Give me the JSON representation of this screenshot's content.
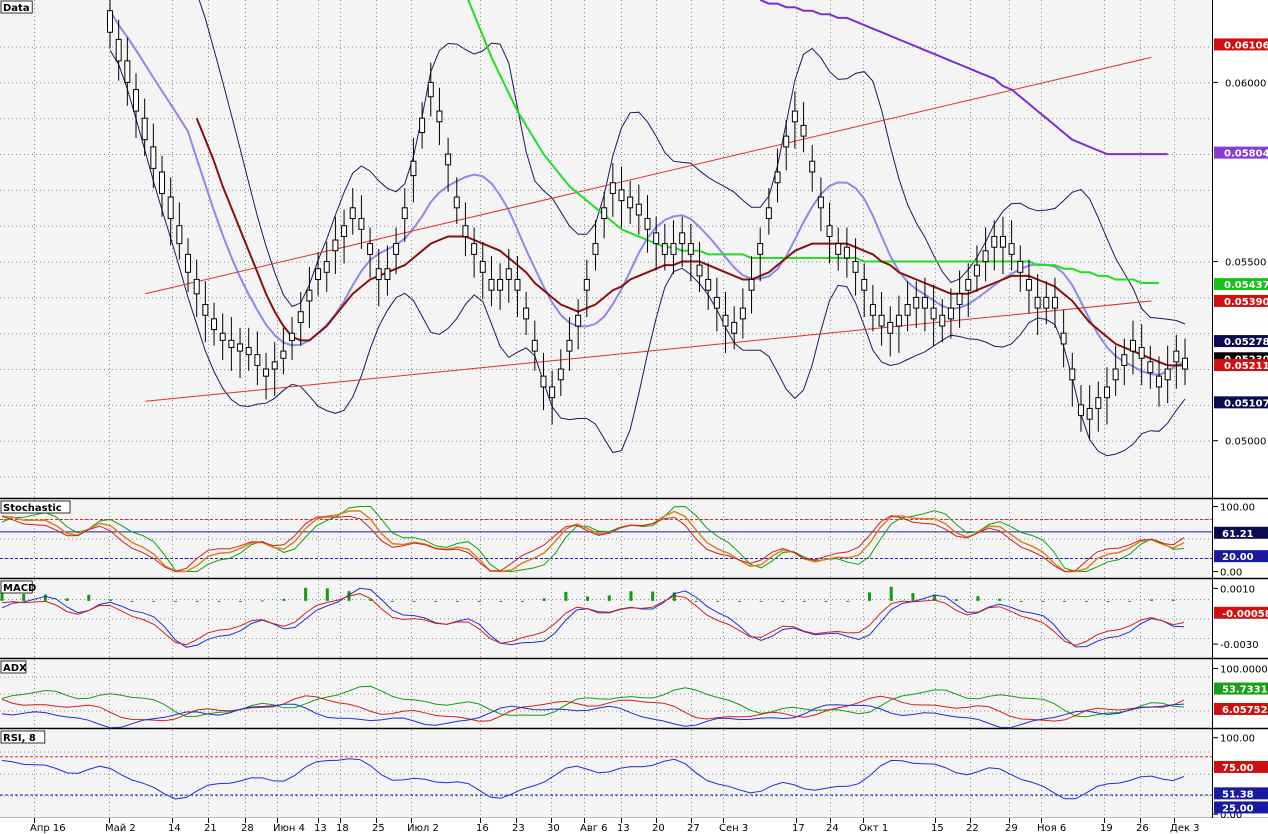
{
  "chart_data": {
    "type": "candlestick",
    "x_ticks": [
      "Апр 16",
      "Май 2",
      "14",
      "21",
      "28",
      "Июн 4",
      "13",
      "18",
      "25",
      "Июл 2",
      "16",
      "23",
      "30",
      "Авг 6",
      "13",
      "20",
      "27",
      "Сен 3",
      "17",
      "24",
      "Окт 1",
      "15",
      "22",
      "29",
      "Ноя 6",
      "19",
      "26",
      "Дек 3"
    ],
    "main": {
      "label": "Data",
      "yticks": [
        "0.06000",
        "0.05500",
        "0.05000"
      ],
      "price_labels": [
        {
          "text": "0.06106",
          "value": 0.06106,
          "color": "#d01010"
        },
        {
          "text": "0.05804",
          "value": 0.05804,
          "color": "#8a3bd6"
        },
        {
          "text": "0.05437",
          "value": 0.05437,
          "color": "#18c018"
        },
        {
          "text": "0.05390",
          "value": 0.0539,
          "color": "#d01010"
        },
        {
          "text": "0.05278",
          "value": 0.05278,
          "color": "#0a0a50"
        },
        {
          "text": "0.05230",
          "value": 0.0523,
          "color": "#000000"
        },
        {
          "text": "0.05211",
          "value": 0.05211,
          "color": "#d01010"
        },
        {
          "text": "0.05107",
          "value": 0.05107,
          "color": "#0a0a50"
        }
      ],
      "ylim": [
        0.0484,
        0.0623
      ],
      "close": [
        0.062,
        0.0612,
        0.0606,
        0.0598,
        0.059,
        0.0582,
        0.0575,
        0.0568,
        0.056,
        0.0552,
        0.0545,
        0.0538,
        0.0534,
        0.053,
        0.0528,
        0.0527,
        0.0526,
        0.0524,
        0.052,
        0.0522,
        0.0525,
        0.053,
        0.0536,
        0.0542,
        0.0548,
        0.055,
        0.0556,
        0.056,
        0.0565,
        0.0562,
        0.0555,
        0.0548,
        0.0548,
        0.0555,
        0.0565,
        0.0578,
        0.059,
        0.06,
        0.0592,
        0.058,
        0.0568,
        0.056,
        0.0555,
        0.055,
        0.0545,
        0.0545,
        0.0548,
        0.0545,
        0.0537,
        0.0528,
        0.0518,
        0.0515,
        0.052,
        0.0528,
        0.0535,
        0.0545,
        0.0555,
        0.0565,
        0.0572,
        0.057,
        0.0568,
        0.0566,
        0.0562,
        0.0558,
        0.0555,
        0.0555,
        0.0558,
        0.0555,
        0.0549,
        0.0545,
        0.054,
        0.0535,
        0.0533,
        0.0537,
        0.0545,
        0.0555,
        0.0565,
        0.0575,
        0.0585,
        0.0592,
        0.0588,
        0.0578,
        0.0568,
        0.056,
        0.0555,
        0.0554,
        0.055,
        0.0545,
        0.0538,
        0.0535,
        0.0533,
        0.0535,
        0.0538,
        0.054,
        0.054,
        0.0537,
        0.0535,
        0.0537,
        0.0541,
        0.0545,
        0.0549,
        0.0553,
        0.0557,
        0.0557,
        0.0555,
        0.055,
        0.0545,
        0.054,
        0.054,
        0.054,
        0.053,
        0.052,
        0.051,
        0.0509,
        0.0512,
        0.0515,
        0.052,
        0.0524,
        0.0528,
        0.0526,
        0.0522,
        0.0518,
        0.052,
        0.0525,
        0.0523
      ],
      "open": [
        0.0614,
        0.0606,
        0.06,
        0.0592,
        0.0584,
        0.0576,
        0.0569,
        0.0562,
        0.0555,
        0.0547,
        0.0541,
        0.0535,
        0.0531,
        0.0528,
        0.0526,
        0.0525,
        0.0524,
        0.0521,
        0.0518,
        0.052,
        0.0523,
        0.0528,
        0.0533,
        0.0539,
        0.0545,
        0.0547,
        0.0553,
        0.0557,
        0.0562,
        0.0559,
        0.0552,
        0.0545,
        0.0545,
        0.0552,
        0.0562,
        0.0574,
        0.0586,
        0.0596,
        0.0589,
        0.0577,
        0.0565,
        0.0557,
        0.0552,
        0.0547,
        0.0542,
        0.0542,
        0.0545,
        0.0542,
        0.0534,
        0.0525,
        0.0515,
        0.0512,
        0.0517,
        0.0525,
        0.0532,
        0.0542,
        0.0552,
        0.0562,
        0.0569,
        0.0567,
        0.0565,
        0.0563,
        0.0559,
        0.0555,
        0.0552,
        0.0552,
        0.0555,
        0.0552,
        0.0546,
        0.0542,
        0.0537,
        0.0532,
        0.053,
        0.0534,
        0.0542,
        0.0552,
        0.0562,
        0.0572,
        0.0582,
        0.0589,
        0.0585,
        0.0575,
        0.0565,
        0.0557,
        0.0552,
        0.0551,
        0.0547,
        0.0542,
        0.0535,
        0.0532,
        0.053,
        0.0532,
        0.0535,
        0.0537,
        0.0537,
        0.0534,
        0.0532,
        0.0534,
        0.0538,
        0.0542,
        0.0546,
        0.055,
        0.0554,
        0.0554,
        0.0552,
        0.0547,
        0.0542,
        0.0537,
        0.0537,
        0.0537,
        0.0527,
        0.0517,
        0.0507,
        0.0506,
        0.0509,
        0.0512,
        0.0517,
        0.0521,
        0.0525,
        0.0523,
        0.0519,
        0.0515,
        0.0517,
        0.0522,
        0.052
      ],
      "ma_dark_red": [
        null,
        null,
        null,
        null,
        null,
        null,
        null,
        null,
        null,
        null,
        0.059,
        0.0584,
        0.0578,
        0.0571,
        0.0565,
        0.0559,
        0.0553,
        0.0547,
        0.0541,
        0.0536,
        0.0532,
        0.0529,
        0.0528,
        0.0528,
        0.053,
        0.0532,
        0.0535,
        0.0538,
        0.0541,
        0.0543,
        0.0545,
        0.0546,
        0.0547,
        0.0548,
        0.0549,
        0.0551,
        0.0553,
        0.0555,
        0.0556,
        0.0557,
        0.0557,
        0.0557,
        0.0556,
        0.0555,
        0.0554,
        0.0553,
        0.0551,
        0.0549,
        0.0547,
        0.0544,
        0.0542,
        0.054,
        0.0538,
        0.0537,
        0.0536,
        0.0537,
        0.0538,
        0.054,
        0.0542,
        0.0543,
        0.0545,
        0.0546,
        0.0547,
        0.0548,
        0.0549,
        0.0549,
        0.055,
        0.055,
        0.055,
        0.0549,
        0.0548,
        0.0547,
        0.0546,
        0.0545,
        0.0545,
        0.0546,
        0.0547,
        0.0549,
        0.0551,
        0.0553,
        0.0554,
        0.0555,
        0.0555,
        0.0555,
        0.0555,
        0.0555,
        0.0554,
        0.0553,
        0.0552,
        0.055,
        0.0549,
        0.0547,
        0.0546,
        0.0545,
        0.0544,
        0.0543,
        0.0542,
        0.0541,
        0.0541,
        0.0541,
        0.0542,
        0.0543,
        0.0544,
        0.0545,
        0.0546,
        0.0546,
        0.0546,
        0.0545,
        0.0544,
        0.0543,
        0.0541,
        0.0539,
        0.0536,
        0.0533,
        0.0531,
        0.0529,
        0.0527,
        0.0526,
        0.0525,
        0.0524,
        0.0523,
        0.0522,
        0.0521,
        0.0521,
        0.0521
      ],
      "ma_green": [
        null,
        null,
        null,
        null,
        null,
        null,
        null,
        null,
        null,
        null,
        null,
        null,
        null,
        null,
        null,
        null,
        null,
        null,
        null,
        null,
        null,
        null,
        null,
        null,
        null,
        null,
        null,
        null,
        null,
        null,
        null,
        null,
        null,
        null,
        null,
        null,
        null,
        null,
        null,
        null,
        null,
        0.0625,
        0.0619,
        0.0613,
        0.0607,
        0.0602,
        0.0597,
        0.0592,
        0.0588,
        0.0584,
        0.058,
        0.0577,
        0.0574,
        0.0571,
        0.0569,
        0.0567,
        0.0565,
        0.0563,
        0.0561,
        0.0559,
        0.0558,
        0.0557,
        0.0556,
        0.0555,
        0.0554,
        0.0554,
        0.0553,
        0.0553,
        0.0553,
        0.0552,
        0.0552,
        0.0552,
        0.0552,
        0.0552,
        0.0551,
        0.0551,
        0.0551,
        0.0551,
        0.0551,
        0.0551,
        0.0551,
        0.0551,
        0.0551,
        0.0551,
        0.0551,
        0.0551,
        0.0551,
        0.055,
        0.055,
        0.055,
        0.055,
        0.055,
        0.055,
        0.055,
        0.055,
        0.055,
        0.055,
        0.055,
        0.055,
        0.055,
        0.055,
        0.055,
        0.055,
        0.055,
        0.055,
        0.055,
        0.055,
        0.0549,
        0.0549,
        0.0549,
        0.0548,
        0.0548,
        0.0547,
        0.0547,
        0.0546,
        0.0546,
        0.0545,
        0.0545,
        0.0545,
        0.0544,
        0.0544,
        0.0544
      ],
      "ma_purple": [
        null,
        null,
        null,
        null,
        null,
        null,
        null,
        null,
        null,
        null,
        null,
        null,
        null,
        null,
        null,
        null,
        null,
        null,
        null,
        null,
        null,
        null,
        null,
        null,
        null,
        null,
        null,
        null,
        null,
        null,
        null,
        null,
        null,
        null,
        null,
        null,
        null,
        null,
        null,
        null,
        null,
        null,
        null,
        null,
        null,
        null,
        null,
        null,
        null,
        null,
        null,
        null,
        null,
        null,
        null,
        null,
        null,
        null,
        null,
        null,
        null,
        null,
        null,
        null,
        null,
        null,
        null,
        null,
        null,
        null,
        null,
        null,
        null,
        null,
        null,
        0.0623,
        0.0622,
        0.0622,
        0.0621,
        0.0621,
        0.062,
        0.062,
        0.0619,
        0.0619,
        0.0618,
        0.0618,
        0.0617,
        0.0616,
        0.0615,
        0.0614,
        0.0613,
        0.0612,
        0.0611,
        0.061,
        0.0609,
        0.0608,
        0.0607,
        0.0606,
        0.0605,
        0.0604,
        0.0603,
        0.0602,
        0.0601,
        0.0599,
        0.0598,
        0.0596,
        0.0594,
        0.0592,
        0.059,
        0.0588,
        0.0586,
        0.0584,
        0.0583,
        0.0582,
        0.0581,
        0.058,
        0.058,
        0.058,
        0.058,
        0.058,
        0.058,
        0.058,
        0.058
      ],
      "channel_lines": [
        {
          "from": [
            0.12,
            0.0541
          ],
          "to": [
            0.95,
            0.0607
          ]
        },
        {
          "from": [
            0.12,
            0.0511
          ],
          "to": [
            0.95,
            0.0539
          ]
        }
      ]
    },
    "panels": [
      {
        "label": "Stochastic",
        "yticks": [
          "100.00",
          "0.00"
        ],
        "ylim": [
          -10,
          110
        ],
        "value_labels": [
          {
            "text": "61.21",
            "color": "#0a0a50"
          },
          {
            "text": "20.00",
            "color": "#1a1aa0"
          }
        ],
        "levels": [
          80,
          20
        ]
      },
      {
        "label": "MACD",
        "yticks": [
          "0.0010",
          "-0.0030"
        ],
        "ylim": [
          -0.004,
          0.0016
        ],
        "value_labels": [
          {
            "text": "-0.00058",
            "color": "#d01010"
          }
        ]
      },
      {
        "label": "ADX",
        "yticks": [
          "100.00000"
        ],
        "ylim": [
          -5,
          115
        ],
        "value_labels": [
          {
            "text": "53.73310",
            "color": "#18a018"
          },
          {
            "text": "6.05752",
            "color": "#d01010"
          }
        ]
      },
      {
        "label": "RSI, 8",
        "yticks": [
          "100.00",
          "0.00"
        ],
        "ylim": [
          -5,
          110
        ],
        "value_labels": [
          {
            "text": "75.00",
            "color": "#d01010"
          },
          {
            "text": "51.38",
            "color": "#1a1aa0"
          },
          {
            "text": "25.00",
            "color": "#1a1aa0"
          }
        ],
        "levels": [
          75,
          25
        ]
      }
    ]
  }
}
